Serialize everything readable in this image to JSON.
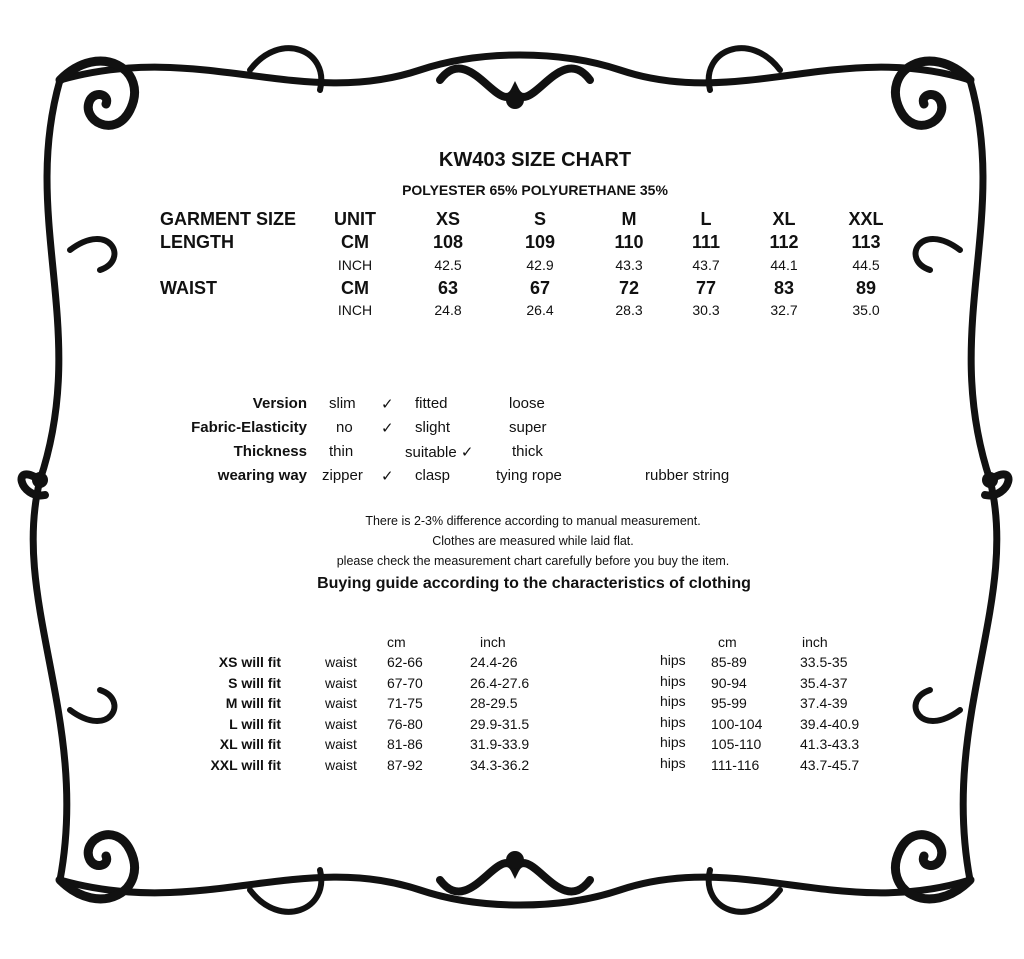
{
  "title": "KW403 SIZE CHART",
  "subtitle": "POLYESTER 65% POLYURETHANE 35%",
  "size_table": {
    "header": {
      "label": "GARMENT SIZE",
      "unit": "UNIT",
      "sizes": [
        "XS",
        "S",
        "M",
        "L",
        "XL",
        "XXL"
      ]
    },
    "rows": [
      {
        "label": "LENGTH",
        "unit": "CM",
        "values": [
          "108",
          "109",
          "110",
          "111",
          "112",
          "113"
        ],
        "bold": true
      },
      {
        "label": "",
        "unit": "INCH",
        "values": [
          "42.5",
          "42.9",
          "43.3",
          "43.7",
          "44.1",
          "44.5"
        ],
        "bold": false
      },
      {
        "label": "WAIST",
        "unit": "CM",
        "values": [
          "63",
          "67",
          "72",
          "77",
          "83",
          "89"
        ],
        "bold": true
      },
      {
        "label": "",
        "unit": "INCH",
        "values": [
          "24.8",
          "26.4",
          "28.3",
          "30.3",
          "32.7",
          "35.0"
        ],
        "bold": false
      }
    ]
  },
  "characteristics": [
    {
      "label": "Version",
      "options": [
        "slim",
        "✓",
        "fitted",
        "loose"
      ]
    },
    {
      "label": "Fabric-Elasticity",
      "options": [
        "no",
        "✓",
        "slight",
        "super"
      ]
    },
    {
      "label": "Thickness",
      "options": [
        "thin",
        "suitable ✓",
        "thick"
      ]
    },
    {
      "label": "wearing way",
      "options": [
        "zipper",
        "✓",
        "clasp",
        "tying rope",
        "rubber string"
      ]
    }
  ],
  "notes": [
    "There is 2-3% difference according to manual measurement.",
    "Clothes are measured while laid flat.",
    "please check the measurement chart carefully before you buy the item."
  ],
  "guide_title": "Buying guide according to the characteristics of clothing",
  "guide": {
    "headers": {
      "cm": "cm",
      "inch": "inch"
    },
    "rows": [
      {
        "fit": "XS will  fit",
        "waist": "waist",
        "waist_cm": "62-66",
        "waist_inch": "24.4-26",
        "hips": "hips",
        "hips_cm": "85-89",
        "hips_inch": "33.5-35"
      },
      {
        "fit": "S will  fit",
        "waist": "waist",
        "waist_cm": "67-70",
        "waist_inch": "26.4-27.6",
        "hips": "hips",
        "hips_cm": "90-94",
        "hips_inch": "35.4-37"
      },
      {
        "fit": "M will fit",
        "waist": "waist",
        "waist_cm": "71-75",
        "waist_inch": "28-29.5",
        "hips": "hips",
        "hips_cm": "95-99",
        "hips_inch": "37.4-39"
      },
      {
        "fit": "L will fit",
        "waist": "waist",
        "waist_cm": "76-80",
        "waist_inch": "29.9-31.5",
        "hips": "hips",
        "hips_cm": "100-104",
        "hips_inch": "39.4-40.9"
      },
      {
        "fit": "XL will fit",
        "waist": "waist",
        "waist_cm": "81-86",
        "waist_inch": "31.9-33.9",
        "hips": "hips",
        "hips_cm": "105-110",
        "hips_inch": "41.3-43.3"
      },
      {
        "fit": "XXL will fit",
        "waist": "waist",
        "waist_cm": "87-92",
        "waist_inch": "34.3-36.2",
        "hips": "hips",
        "hips_cm": "111-116",
        "hips_inch": "43.7-45.7"
      }
    ]
  },
  "colors": {
    "ink": "#111111",
    "background": "#ffffff"
  },
  "decoration": "baroque-scroll-frame"
}
